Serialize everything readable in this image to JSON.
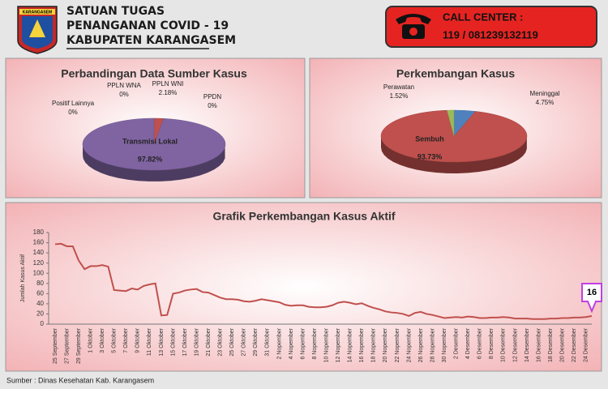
{
  "header": {
    "logo_text": "KARANGASEM",
    "line1": "SATUAN TUGAS",
    "line2": "PENANGANAN COVID - 19",
    "line3": "KABUPATEN KARANGASEM"
  },
  "call_center": {
    "label": "CALL CENTER :",
    "numbers": "119 / 081239132119"
  },
  "source": "Sumber : Dinas Kesehatan Kab. Karangasem",
  "chart_data": [
    {
      "type": "pie",
      "title": "Perbandingan Data Sumber Kasus",
      "categories": [
        "PPLN WNA",
        "PPLN WNI",
        "PPDN",
        "Transmisi Lokal",
        "Positif Lainnya"
      ],
      "values": [
        0,
        2.18,
        0,
        97.82,
        0
      ],
      "value_labels": [
        "0%",
        "2.18%",
        "0%",
        "97.82%",
        "0%"
      ],
      "colors": [
        "#4f81bd",
        "#c0504d",
        "#9bbb59",
        "#8064a2",
        "#4bacc6"
      ]
    },
    {
      "type": "pie",
      "title": "Perkembangan Kasus",
      "categories": [
        "Meninggal",
        "Sembuh",
        "Perawatan"
      ],
      "values": [
        4.75,
        93.73,
        1.52
      ],
      "value_labels": [
        "4.75%",
        "93.73%",
        "1.52%"
      ],
      "colors": [
        "#4f81bd",
        "#c0504d",
        "#9bbb59"
      ]
    },
    {
      "type": "line",
      "title": "Grafik Perkembangan Kasus Aktif",
      "y_label": "Jumlah Kasus Aktif",
      "color": "#c0504d",
      "ylim": [
        0,
        180
      ],
      "yticks": [
        0,
        20,
        40,
        60,
        80,
        100,
        120,
        140,
        160,
        180
      ],
      "categories": [
        "25 September",
        null,
        "27 September",
        null,
        "29 September",
        null,
        "1 Oktober",
        null,
        "3 Oktober",
        null,
        "5 Oktober",
        null,
        "7 Oktober",
        null,
        "9 Oktober",
        null,
        "11 Oktober",
        null,
        "13 Oktober",
        null,
        "15 Oktober",
        null,
        "17 Oktober",
        null,
        "19 Oktober",
        null,
        "21 Oktober",
        null,
        "23 Oktober",
        null,
        "25 Oktober",
        null,
        "27 Oktober",
        null,
        "29 Oktober",
        null,
        "31 Oktober",
        null,
        "2 Nopember",
        null,
        "4 Nopember",
        null,
        "6 Nopember",
        null,
        "8 Nopember",
        null,
        "10 Nopember",
        null,
        "12 Nopember",
        null,
        "14 Nopember",
        null,
        "16 Nopember",
        null,
        "18 Nopember",
        null,
        "20 Nopember",
        null,
        "22 Nopember",
        null,
        "24 Nopember",
        null,
        "26 Nopember",
        null,
        "28 Nopember",
        null,
        "30 Nopember",
        null,
        "2 Desember",
        null,
        "4 Desember",
        null,
        "6 Desember",
        null,
        "8 Desember",
        null,
        "10 Desember",
        null,
        "12 Desember",
        null,
        "14 Desember",
        null,
        "16 Desember",
        null,
        "18 Desember",
        null,
        "20 Desember",
        null,
        "22 Desember",
        null,
        "24 Desember",
        null
      ],
      "values": [
        157,
        158,
        153,
        153,
        125,
        108,
        114,
        114,
        116,
        113,
        67,
        66,
        65,
        70,
        68,
        75,
        78,
        80,
        17,
        18,
        60,
        62,
        66,
        68,
        69,
        63,
        62,
        57,
        52,
        49,
        49,
        48,
        45,
        44,
        46,
        49,
        47,
        45,
        43,
        38,
        36,
        37,
        37,
        34,
        33,
        33,
        34,
        37,
        42,
        44,
        42,
        39,
        41,
        36,
        32,
        29,
        25,
        23,
        22,
        20,
        16,
        22,
        24,
        20,
        18,
        15,
        12,
        13,
        14,
        13,
        15,
        14,
        12,
        12,
        13,
        13,
        14,
        13,
        11,
        11,
        11,
        10,
        10,
        10,
        11,
        11,
        12,
        12,
        13,
        13,
        14,
        16
      ],
      "callout_index": 91
    }
  ]
}
